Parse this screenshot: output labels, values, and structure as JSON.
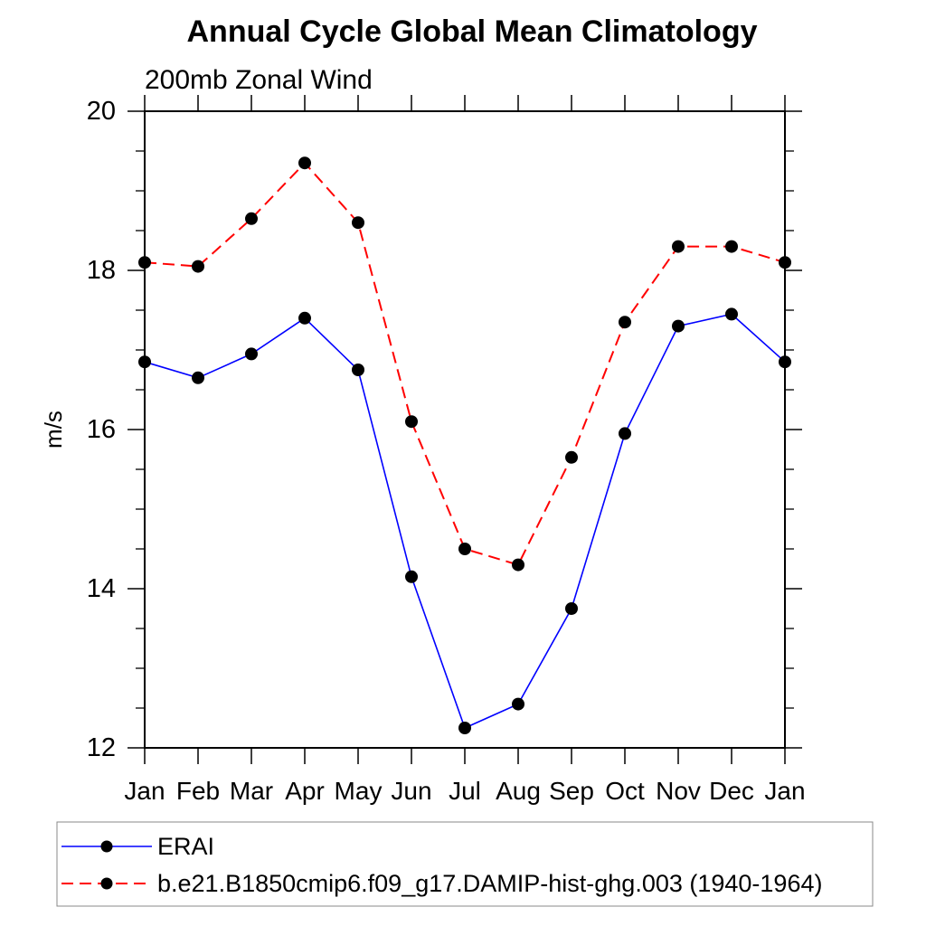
{
  "chart_data": {
    "type": "line",
    "title": "Annual Cycle Global Mean Climatology",
    "subtitle": "200mb Zonal Wind",
    "ylabel": "m/s",
    "x_categories": [
      "Jan",
      "Feb",
      "Mar",
      "Apr",
      "May",
      "Jun",
      "Jul",
      "Aug",
      "Sep",
      "Oct",
      "Nov",
      "Dec",
      "Jan"
    ],
    "ylim": [
      12,
      20
    ],
    "y_major_ticks": [
      20,
      18,
      16,
      14,
      12
    ],
    "y_minor_step": 0.5,
    "grid": false,
    "legend_position": "bottom-left-box",
    "frame_color": "#000000",
    "marker_color": "#000000",
    "series": [
      {
        "name": "ERAI",
        "color": "#0000ff",
        "line_style": "solid",
        "marker": "circle",
        "values": [
          16.85,
          16.65,
          16.95,
          17.4,
          16.75,
          14.15,
          12.25,
          12.55,
          13.75,
          15.95,
          17.3,
          17.45,
          16.85
        ]
      },
      {
        "name": "b.e21.B1850cmip6.f09_g17.DAMIP-hist-ghg.003 (1940-1964)",
        "color": "#ff0000",
        "line_style": "dashed",
        "marker": "circle",
        "values": [
          18.1,
          18.05,
          18.65,
          19.35,
          18.6,
          16.1,
          14.5,
          14.3,
          15.65,
          17.35,
          18.3,
          18.3,
          18.1
        ]
      }
    ]
  }
}
